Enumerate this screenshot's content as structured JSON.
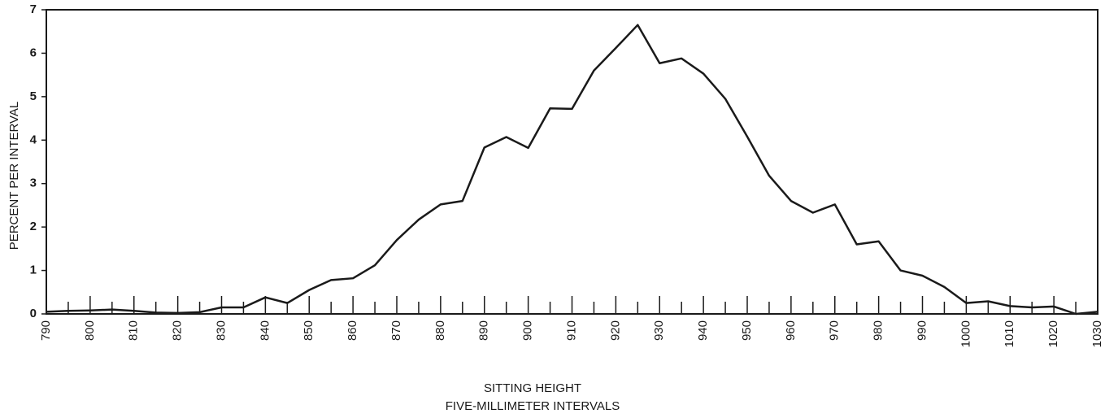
{
  "chart_data": {
    "type": "line",
    "y_label": "PERCENT PER INTERVAL",
    "x_label": [
      "SITTING HEIGHT",
      "FIVE-MILLIMETER INTERVALS"
    ],
    "x": [
      790,
      795,
      800,
      805,
      810,
      815,
      820,
      825,
      830,
      835,
      840,
      845,
      850,
      855,
      860,
      865,
      870,
      875,
      880,
      885,
      890,
      895,
      900,
      905,
      910,
      915,
      920,
      925,
      930,
      935,
      940,
      945,
      950,
      955,
      960,
      965,
      970,
      975,
      980,
      985,
      990,
      995,
      1000,
      1005,
      1010,
      1015,
      1020,
      1025,
      1030
    ],
    "series": [
      {
        "name": "Sitting height",
        "color": "#1a1a1a",
        "values": [
          0.05,
          0.07,
          0.08,
          0.1,
          0.07,
          0.03,
          0.02,
          0.04,
          0.15,
          0.15,
          0.38,
          0.25,
          0.55,
          0.78,
          0.82,
          1.12,
          1.7,
          2.17,
          2.52,
          2.6,
          3.83,
          4.07,
          3.82,
          4.73,
          4.72,
          5.6,
          6.12,
          6.65,
          5.77,
          5.88,
          5.53,
          4.95,
          4.08,
          3.18,
          2.6,
          2.33,
          2.52,
          1.6,
          1.67,
          1.0,
          0.88,
          0.62,
          0.25,
          0.29,
          0.18,
          0.15,
          0.17,
          0.0,
          0.05
        ]
      }
    ],
    "xlim": [
      790,
      1030
    ],
    "xticks": [
      790,
      800,
      810,
      820,
      830,
      840,
      850,
      860,
      870,
      880,
      890,
      900,
      910,
      920,
      930,
      940,
      950,
      960,
      970,
      980,
      990,
      1000,
      1010,
      1020,
      1030
    ],
    "xminorticks": [
      795,
      805,
      815,
      825,
      835,
      845,
      855,
      865,
      875,
      885,
      895,
      905,
      915,
      925,
      935,
      945,
      955,
      965,
      975,
      985,
      995,
      1005,
      1015,
      1025
    ],
    "ylim": [
      0,
      7
    ],
    "yticks": [
      0,
      1,
      2,
      3,
      4,
      5,
      6,
      7
    ],
    "grid": false
  }
}
